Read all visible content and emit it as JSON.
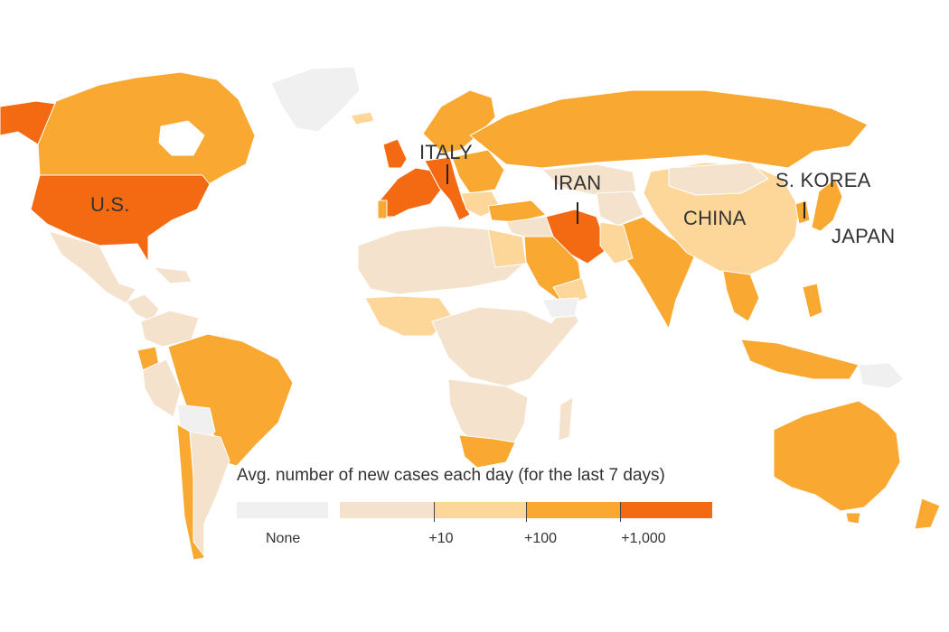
{
  "map": {
    "labels": {
      "us": "U.S.",
      "italy": "ITALY",
      "iran": "IRAN",
      "s_korea": "S. KOREA",
      "china": "CHINA",
      "japan": "JAPAN"
    },
    "scale_colors": {
      "none": "#f0f0f0",
      "under_10": "#f4e2cc",
      "ten_plus": "#fdd79a",
      "hundred_plus": "#f9a831",
      "thousand_plus": "#f46a12"
    }
  },
  "legend": {
    "title": "Avg. number of new cases each day (for the last 7 days)",
    "none_label": "None",
    "tick_10": "+10",
    "tick_100": "+100",
    "tick_1000": "+1,000"
  }
}
